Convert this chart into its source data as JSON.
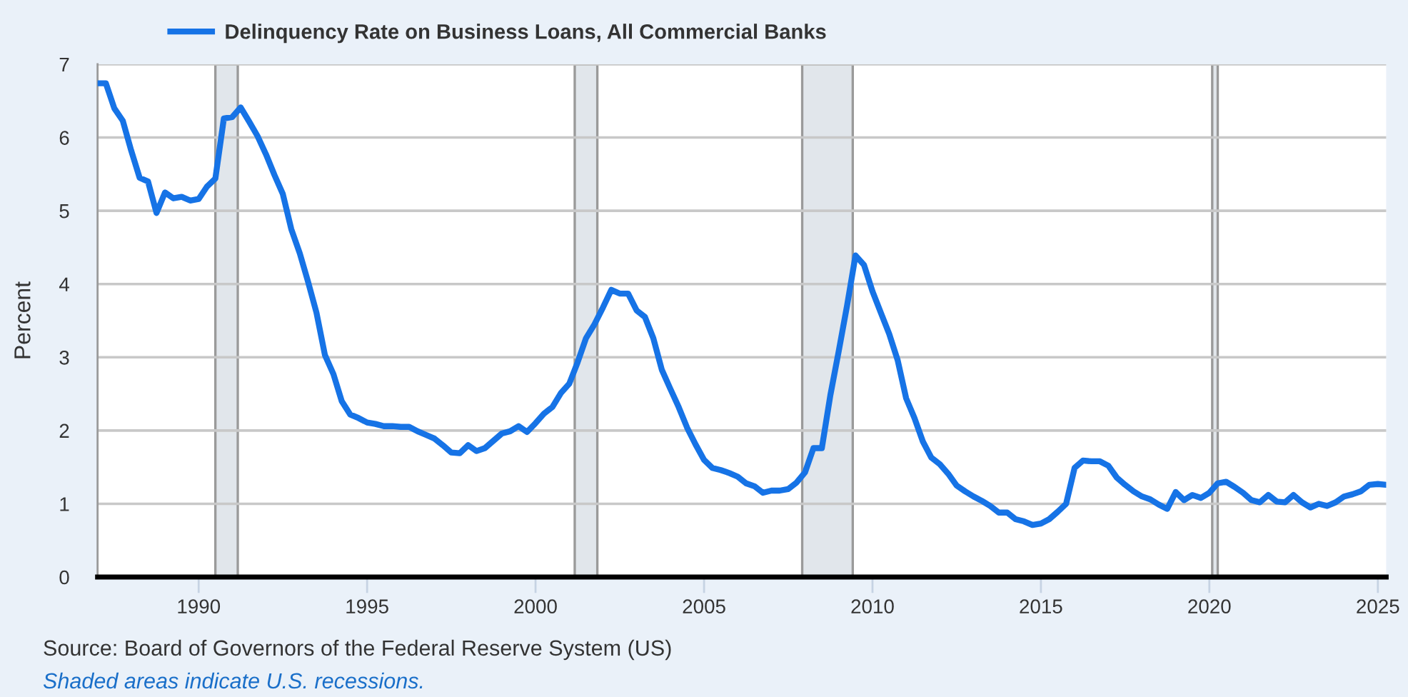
{
  "chart_data": {
    "type": "line",
    "ylabel": "Percent",
    "x": [
      "1987-01",
      "1987-04",
      "1987-07",
      "1987-10",
      "1988-01",
      "1988-04",
      "1988-07",
      "1988-10",
      "1989-01",
      "1989-04",
      "1989-07",
      "1989-10",
      "1990-01",
      "1990-04",
      "1990-07",
      "1990-10",
      "1991-01",
      "1991-04",
      "1991-07",
      "1991-10",
      "1992-01",
      "1992-04",
      "1992-07",
      "1992-10",
      "1993-01",
      "1993-04",
      "1993-07",
      "1993-10",
      "1994-01",
      "1994-04",
      "1994-07",
      "1994-10",
      "1995-01",
      "1995-04",
      "1995-07",
      "1995-10",
      "1996-01",
      "1996-04",
      "1996-07",
      "1996-10",
      "1997-01",
      "1997-04",
      "1997-07",
      "1997-10",
      "1998-01",
      "1998-04",
      "1998-07",
      "1998-10",
      "1999-01",
      "1999-04",
      "1999-07",
      "1999-10",
      "2000-01",
      "2000-04",
      "2000-07",
      "2000-10",
      "2001-01",
      "2001-04",
      "2001-07",
      "2001-10",
      "2002-01",
      "2002-04",
      "2002-07",
      "2002-10",
      "2003-01",
      "2003-04",
      "2003-07",
      "2003-10",
      "2004-01",
      "2004-04",
      "2004-07",
      "2004-10",
      "2005-01",
      "2005-04",
      "2005-07",
      "2005-10",
      "2006-01",
      "2006-04",
      "2006-07",
      "2006-10",
      "2007-01",
      "2007-04",
      "2007-07",
      "2007-10",
      "2008-01",
      "2008-04",
      "2008-07",
      "2008-10",
      "2009-01",
      "2009-04",
      "2009-07",
      "2009-10",
      "2010-01",
      "2010-04",
      "2010-07",
      "2010-10",
      "2011-01",
      "2011-04",
      "2011-07",
      "2011-10",
      "2012-01",
      "2012-04",
      "2012-07",
      "2012-10",
      "2013-01",
      "2013-04",
      "2013-07",
      "2013-10",
      "2014-01",
      "2014-04",
      "2014-07",
      "2014-10",
      "2015-01",
      "2015-04",
      "2015-07",
      "2015-10",
      "2016-01",
      "2016-04",
      "2016-07",
      "2016-10",
      "2017-01",
      "2017-04",
      "2017-07",
      "2017-10",
      "2018-01",
      "2018-04",
      "2018-07",
      "2018-10",
      "2019-01",
      "2019-04",
      "2019-07",
      "2019-10",
      "2020-01",
      "2020-04",
      "2020-07",
      "2020-10",
      "2021-01",
      "2021-04",
      "2021-07",
      "2021-10",
      "2022-01",
      "2022-04",
      "2022-07",
      "2022-10",
      "2023-01",
      "2023-04",
      "2023-07",
      "2023-10",
      "2024-01",
      "2024-04",
      "2024-07",
      "2024-10",
      "2025-01",
      "2025-04"
    ],
    "series": [
      {
        "name": "Delinquency Rate on Business Loans, All Commercial Banks",
        "color": "#1673e6",
        "values": [
          6.74,
          6.74,
          6.4,
          6.23,
          5.82,
          5.45,
          5.4,
          4.97,
          5.25,
          5.17,
          5.19,
          5.14,
          5.16,
          5.33,
          5.44,
          6.26,
          6.28,
          6.41,
          6.22,
          6.02,
          5.77,
          5.49,
          5.23,
          4.75,
          4.42,
          4.03,
          3.61,
          3.03,
          2.77,
          2.4,
          2.22,
          2.17,
          2.11,
          2.09,
          2.06,
          2.06,
          2.05,
          2.05,
          1.99,
          1.94,
          1.89,
          1.8,
          1.7,
          1.69,
          1.8,
          1.72,
          1.76,
          1.86,
          1.96,
          1.99,
          2.06,
          1.98,
          2.1,
          2.23,
          2.32,
          2.51,
          2.64,
          2.93,
          3.26,
          3.45,
          3.68,
          3.92,
          3.87,
          3.87,
          3.64,
          3.55,
          3.26,
          2.83,
          2.57,
          2.32,
          2.04,
          1.81,
          1.6,
          1.49,
          1.46,
          1.42,
          1.37,
          1.28,
          1.24,
          1.15,
          1.18,
          1.18,
          1.2,
          1.29,
          1.43,
          1.76,
          1.76,
          2.48,
          3.09,
          3.71,
          4.39,
          4.26,
          3.9,
          3.61,
          3.32,
          2.96,
          2.44,
          2.17,
          1.85,
          1.63,
          1.54,
          1.41,
          1.25,
          1.17,
          1.1,
          1.04,
          0.97,
          0.88,
          0.88,
          0.79,
          0.76,
          0.71,
          0.73,
          0.79,
          0.89,
          1.0,
          1.49,
          1.59,
          1.58,
          1.58,
          1.52,
          1.36,
          1.26,
          1.17,
          1.1,
          1.06,
          0.99,
          0.93,
          1.16,
          1.05,
          1.12,
          1.08,
          1.15,
          1.28,
          1.3,
          1.23,
          1.15,
          1.05,
          1.02,
          1.12,
          1.03,
          1.02,
          1.12,
          1.02,
          0.95,
          1.0,
          0.97,
          1.02,
          1.1,
          1.13,
          1.17,
          1.26,
          1.27,
          1.26
        ]
      }
    ],
    "xlim": [
      "1987-01-01",
      "2025-04-01"
    ],
    "xticks": [
      "1990",
      "1995",
      "2000",
      "2005",
      "2010",
      "2015",
      "2020",
      "2025"
    ],
    "ylim": [
      0,
      7
    ],
    "yticks": [
      0,
      1,
      2,
      3,
      4,
      5,
      6,
      7
    ],
    "bands": [
      {
        "axis": "x",
        "from": "1990-07-01",
        "to": "1991-03-01",
        "color": "#e1e6eb"
      },
      {
        "axis": "x",
        "from": "2001-03-01",
        "to": "2001-11-01",
        "color": "#e1e6eb"
      },
      {
        "axis": "x",
        "from": "2007-12-01",
        "to": "2009-06-01",
        "color": "#e1e6eb"
      },
      {
        "axis": "x",
        "from": "2020-02-01",
        "to": "2020-04-01",
        "color": "#e1e6eb"
      }
    ],
    "grid": "y",
    "legend": "top left",
    "annotations": [
      "Source: Board of Governors of the Federal Reserve System (US)",
      "Shaded areas indicate U.S. recessions."
    ]
  }
}
